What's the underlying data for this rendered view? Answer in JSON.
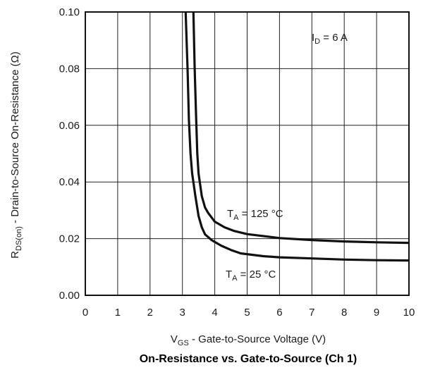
{
  "chart_data": {
    "type": "line",
    "title": "On-Resistance vs. Gate-to-Source (Ch 1)",
    "xlabel": {
      "main": "V",
      "sub": "GS",
      "rest": " - Gate-to-Source Voltage (V)"
    },
    "ylabel": {
      "main": "R",
      "sub": "DS(on)",
      "rest": " - Drain-to-Source On-Resistance (Ω)"
    },
    "xlim": [
      0,
      10
    ],
    "ylim": [
      0,
      0.1
    ],
    "grid": true,
    "x_ticks": [
      "0",
      "1",
      "2",
      "3",
      "4",
      "5",
      "6",
      "7",
      "8",
      "9",
      "10"
    ],
    "y_ticks": [
      "0.00",
      "0.02",
      "0.04",
      "0.06",
      "0.08",
      "0.10"
    ],
    "annotations": [
      {
        "id": "id-label",
        "main": "I",
        "sub": "D",
        "rest": " = 6 A"
      }
    ],
    "series": [
      {
        "name": {
          "main": "T",
          "sub": "A",
          "rest": " = 125 °C"
        },
        "color": "#111111",
        "points": [
          [
            3.34,
            0.1
          ],
          [
            3.38,
            0.08
          ],
          [
            3.42,
            0.064
          ],
          [
            3.46,
            0.05
          ],
          [
            3.5,
            0.043
          ],
          [
            3.6,
            0.035
          ],
          [
            3.7,
            0.031
          ],
          [
            3.8,
            0.029
          ],
          [
            4.0,
            0.026
          ],
          [
            4.3,
            0.024
          ],
          [
            4.6,
            0.0227
          ],
          [
            5.0,
            0.0216
          ],
          [
            6.0,
            0.0202
          ],
          [
            7.0,
            0.0195
          ],
          [
            8.0,
            0.019
          ],
          [
            9.0,
            0.0187
          ],
          [
            10.0,
            0.0185
          ]
        ]
      },
      {
        "name": {
          "main": "T",
          "sub": "A",
          "rest": " = 25 °C"
        },
        "color": "#111111",
        "points": [
          [
            3.1,
            0.1
          ],
          [
            3.16,
            0.08
          ],
          [
            3.2,
            0.062
          ],
          [
            3.25,
            0.05
          ],
          [
            3.3,
            0.043
          ],
          [
            3.4,
            0.035
          ],
          [
            3.5,
            0.028
          ],
          [
            3.6,
            0.024
          ],
          [
            3.7,
            0.0215
          ],
          [
            3.9,
            0.0195
          ],
          [
            4.2,
            0.0175
          ],
          [
            4.5,
            0.016
          ],
          [
            4.8,
            0.0148
          ],
          [
            5.5,
            0.0138
          ],
          [
            6.0,
            0.0134
          ],
          [
            7.0,
            0.013
          ],
          [
            8.0,
            0.0126
          ],
          [
            9.0,
            0.0124
          ],
          [
            10.0,
            0.0123
          ]
        ]
      }
    ]
  }
}
